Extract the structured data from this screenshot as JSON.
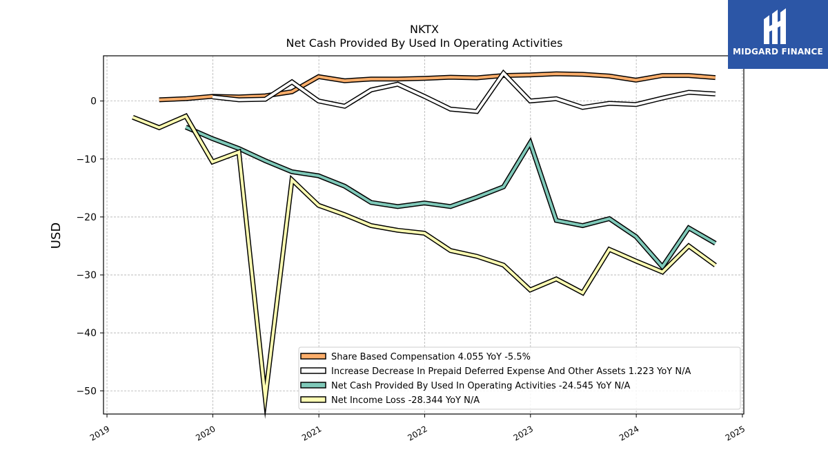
{
  "brand": {
    "name": "MIDGARD FINANCE",
    "logo_icon": "midgard-logo-icon",
    "background": "#2c56a6"
  },
  "chart_data": {
    "type": "line",
    "title": "NKTX",
    "subtitle": "Net Cash Provided By Used In Operating Activities",
    "ylabel": "USD",
    "xlabel": "",
    "x_ticks": [
      "2019",
      "2020",
      "2021",
      "2022",
      "2023",
      "2024",
      "2025"
    ],
    "y_ticks": [
      0,
      -10,
      -20,
      -30,
      -40,
      -50
    ],
    "xlim": [
      "2018-12-20",
      "2025-01-06"
    ],
    "ylim": [
      -54,
      7.8
    ],
    "grid": true,
    "legend_position": "lower-right",
    "series": [
      {
        "name": "Share Based Compensation",
        "legend": "Share Based Compensation  4.055 YoY -5.5%",
        "color": "#fdae6b",
        "points": [
          [
            "2019-06-30",
            0.2
          ],
          [
            "2019-09-30",
            0.4
          ],
          [
            "2019-12-31",
            0.8
          ],
          [
            "2020-03-31",
            0.7
          ],
          [
            "2020-06-30",
            0.9
          ],
          [
            "2020-09-30",
            1.6
          ],
          [
            "2020-12-31",
            4.2
          ],
          [
            "2021-03-31",
            3.5
          ],
          [
            "2021-06-30",
            3.8
          ],
          [
            "2021-09-30",
            3.8
          ],
          [
            "2021-12-31",
            3.9
          ],
          [
            "2022-03-31",
            4.1
          ],
          [
            "2022-06-30",
            4.0
          ],
          [
            "2022-09-30",
            4.4
          ],
          [
            "2022-12-31",
            4.5
          ],
          [
            "2023-03-31",
            4.7
          ],
          [
            "2023-06-30",
            4.6
          ],
          [
            "2023-09-30",
            4.3
          ],
          [
            "2023-12-31",
            3.6
          ],
          [
            "2024-03-31",
            4.4
          ],
          [
            "2024-06-30",
            4.4
          ],
          [
            "2024-09-30",
            4.05
          ]
        ]
      },
      {
        "name": "Increase Decrease In Prepaid Deferred Expense And Other Assets",
        "legend": "Increase Decrease In Prepaid Deferred Expense And Other Assets  1.223 YoY N/A",
        "color": "#ffffff",
        "points": [
          [
            "2019-12-31",
            0.7
          ],
          [
            "2020-03-31",
            0.2
          ],
          [
            "2020-06-30",
            0.3
          ],
          [
            "2020-09-30",
            3.3
          ],
          [
            "2020-12-31",
            0.0
          ],
          [
            "2021-03-31",
            -0.9
          ],
          [
            "2021-06-30",
            1.9
          ],
          [
            "2021-09-30",
            2.9
          ],
          [
            "2021-12-31",
            0.8
          ],
          [
            "2022-03-31",
            -1.4
          ],
          [
            "2022-06-30",
            -1.8
          ],
          [
            "2022-09-30",
            4.8
          ],
          [
            "2022-12-31",
            0.0
          ],
          [
            "2023-03-31",
            0.4
          ],
          [
            "2023-06-30",
            -1.1
          ],
          [
            "2023-09-30",
            -0.4
          ],
          [
            "2023-12-31",
            -0.6
          ],
          [
            "2024-03-31",
            0.5
          ],
          [
            "2024-06-30",
            1.5
          ],
          [
            "2024-09-30",
            1.22
          ]
        ]
      },
      {
        "name": "Net Cash Provided By Used In Operating Activities",
        "legend": "Net Cash Provided By Used In Operating Activities  -24.545 YoY N/A",
        "color": "#7fc9b9",
        "points": [
          [
            "2019-09-30",
            -4.5
          ],
          [
            "2019-12-31",
            -6.5
          ],
          [
            "2020-03-31",
            -8.2
          ],
          [
            "2020-06-30",
            -10.3
          ],
          [
            "2020-09-30",
            -12.2
          ],
          [
            "2020-12-31",
            -12.9
          ],
          [
            "2021-03-31",
            -14.7
          ],
          [
            "2021-06-30",
            -17.5
          ],
          [
            "2021-09-30",
            -18.2
          ],
          [
            "2021-12-31",
            -17.6
          ],
          [
            "2022-03-31",
            -18.2
          ],
          [
            "2022-06-30",
            -16.6
          ],
          [
            "2022-09-30",
            -14.8
          ],
          [
            "2022-12-31",
            -7.2
          ],
          [
            "2023-03-31",
            -20.6
          ],
          [
            "2023-06-30",
            -21.5
          ],
          [
            "2023-09-30",
            -20.3
          ],
          [
            "2023-12-31",
            -23.4
          ],
          [
            "2024-03-31",
            -28.6
          ],
          [
            "2024-06-30",
            -21.9
          ],
          [
            "2024-09-30",
            -24.55
          ]
        ]
      },
      {
        "name": "Net Income Loss",
        "legend": "Net Income Loss  -28.344 YoY N/A",
        "color": "#ffffb3",
        "points": [
          [
            "2019-03-31",
            -2.8
          ],
          [
            "2019-06-30",
            -4.6
          ],
          [
            "2019-09-30",
            -2.6
          ],
          [
            "2019-12-31",
            -10.5
          ],
          [
            "2020-03-31",
            -8.8
          ],
          [
            "2020-06-30",
            -51.2
          ],
          [
            "2020-09-30",
            -13.6
          ],
          [
            "2020-12-31",
            -18.0
          ],
          [
            "2021-03-31",
            -19.6
          ],
          [
            "2021-06-30",
            -21.5
          ],
          [
            "2021-09-30",
            -22.3
          ],
          [
            "2021-12-31",
            -22.8
          ],
          [
            "2022-03-31",
            -25.8
          ],
          [
            "2022-06-30",
            -26.8
          ],
          [
            "2022-09-30",
            -28.3
          ],
          [
            "2022-12-31",
            -32.6
          ],
          [
            "2023-03-31",
            -30.7
          ],
          [
            "2023-06-30",
            -33.1
          ],
          [
            "2023-09-30",
            -25.6
          ],
          [
            "2023-12-31",
            -27.6
          ],
          [
            "2024-03-31",
            -29.5
          ],
          [
            "2024-06-30",
            -25.0
          ],
          [
            "2024-09-30",
            -28.34
          ]
        ]
      }
    ]
  }
}
